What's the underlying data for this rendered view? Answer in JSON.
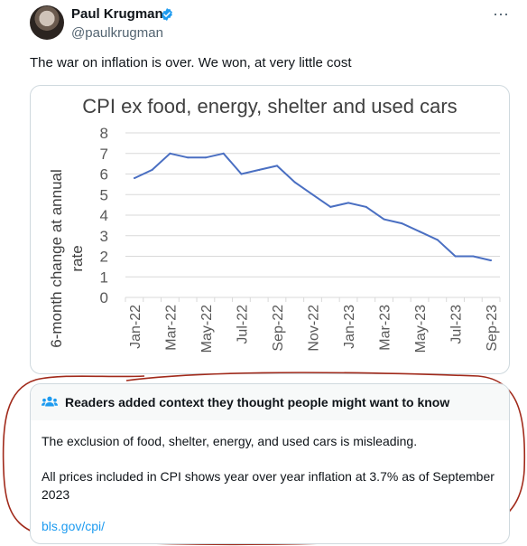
{
  "author": {
    "name": "Paul Krugman",
    "handle": "@paulkrugman"
  },
  "tweet": {
    "text": "The war on inflation is over. We won, at very little cost"
  },
  "icons": {
    "more": "more-options-icon",
    "verified": "verified-badge-icon",
    "context": "people-icon"
  },
  "colors": {
    "line": "#4a6fc2",
    "accent": "#1d9bf0",
    "annotation": "#a12a1b"
  },
  "chart_data": {
    "type": "line",
    "title": "CPI ex food, energy, shelter and used cars",
    "ylabel": "6-month change at annual rate",
    "xlabel": "",
    "ylim": [
      0,
      8
    ],
    "yticks": [
      0,
      1,
      2,
      3,
      4,
      5,
      6,
      7,
      8
    ],
    "grid": true,
    "x": [
      "Jan-22",
      "Feb-22",
      "Mar-22",
      "Apr-22",
      "May-22",
      "Jun-22",
      "Jul-22",
      "Aug-22",
      "Sep-22",
      "Oct-22",
      "Nov-22",
      "Dec-22",
      "Jan-23",
      "Feb-23",
      "Mar-23",
      "Apr-23",
      "May-23",
      "Jun-23",
      "Jul-23",
      "Aug-23",
      "Sep-23"
    ],
    "xtick_labels": [
      "Jan-22",
      "Mar-22",
      "May-22",
      "Jul-22",
      "Sep-22",
      "Nov-22",
      "Jan-23",
      "Mar-23",
      "May-23",
      "Jul-23",
      "Sep-23"
    ],
    "series": [
      {
        "values": [
          5.8,
          6.2,
          7.0,
          6.8,
          6.8,
          7.0,
          6.0,
          6.2,
          6.4,
          5.6,
          5.0,
          4.4,
          4.6,
          4.4,
          3.8,
          3.6,
          3.2,
          2.8,
          2.0,
          2.0,
          1.8
        ]
      }
    ]
  },
  "community_note": {
    "title": "Readers added context they thought people might want to know",
    "body1": "The exclusion of food, shelter, energy, and used cars is misleading.",
    "body2": "All prices included in CPI shows year over year inflation at 3.7% as of September 2023",
    "link": "bls.gov/cpi/"
  }
}
